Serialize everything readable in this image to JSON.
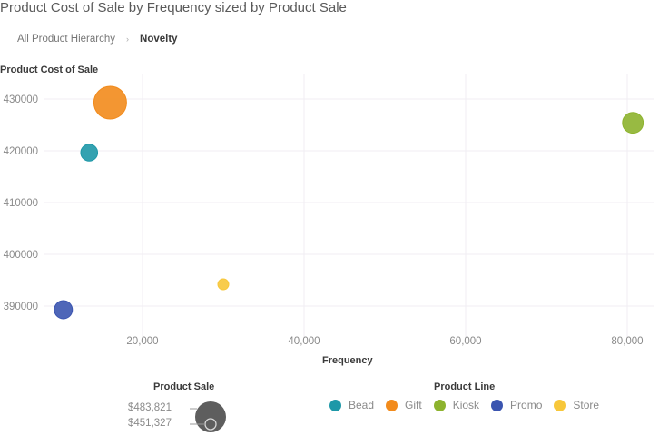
{
  "header": {
    "title": "Product Cost of Sale by Frequency sized by Product Sale"
  },
  "breadcrumb": {
    "root": "All Product Hierarchy",
    "separator_icon": "chevron-right-icon",
    "current": "Novelty"
  },
  "chart_data": {
    "type": "scatter",
    "subtype": "bubble",
    "title": "Product Cost of Sale by Frequency sized by Product Sale",
    "xlabel": "Frequency",
    "ylabel": "Product Cost of Sale",
    "size_label": "Product Sale",
    "color_label": "Product Line",
    "xlim": [
      -2400,
      84000
    ],
    "ylim": [
      383700,
      434700
    ],
    "x_ticks": [
      20000,
      40000,
      60000,
      80000
    ],
    "x_tick_labels": [
      "20,000",
      "40,000",
      "60,000",
      "80,000"
    ],
    "y_ticks": [
      390000,
      400000,
      410000,
      420000,
      430000
    ],
    "y_tick_labels": [
      "390000",
      "400000",
      "410000",
      "420000",
      "430000"
    ],
    "grid": true,
    "legend_placement": "bottom",
    "size_legend": {
      "max_label": "$483,821",
      "min_label": "$451,327",
      "max_value": 483821,
      "min_value": 451327
    },
    "series": [
      {
        "name": "Bead",
        "color": "#1e98a8",
        "x": 13400,
        "y": 419650,
        "size": 457000
      },
      {
        "name": "Gift",
        "color": "#f28b1c",
        "x": 16000,
        "y": 429300,
        "size": 483821
      },
      {
        "name": "Kiosk",
        "color": "#8db32e",
        "x": 80700,
        "y": 425400,
        "size": 462000
      },
      {
        "name": "Promo",
        "color": "#3b55b0",
        "x": 10200,
        "y": 389300,
        "size": 458500
      },
      {
        "name": "Store",
        "color": "#f7c73a",
        "x": 30000,
        "y": 394200,
        "size": 451327
      }
    ]
  },
  "colors": {
    "grid": "#f0eef3",
    "size_legend_fill": "#5e5e5e"
  }
}
